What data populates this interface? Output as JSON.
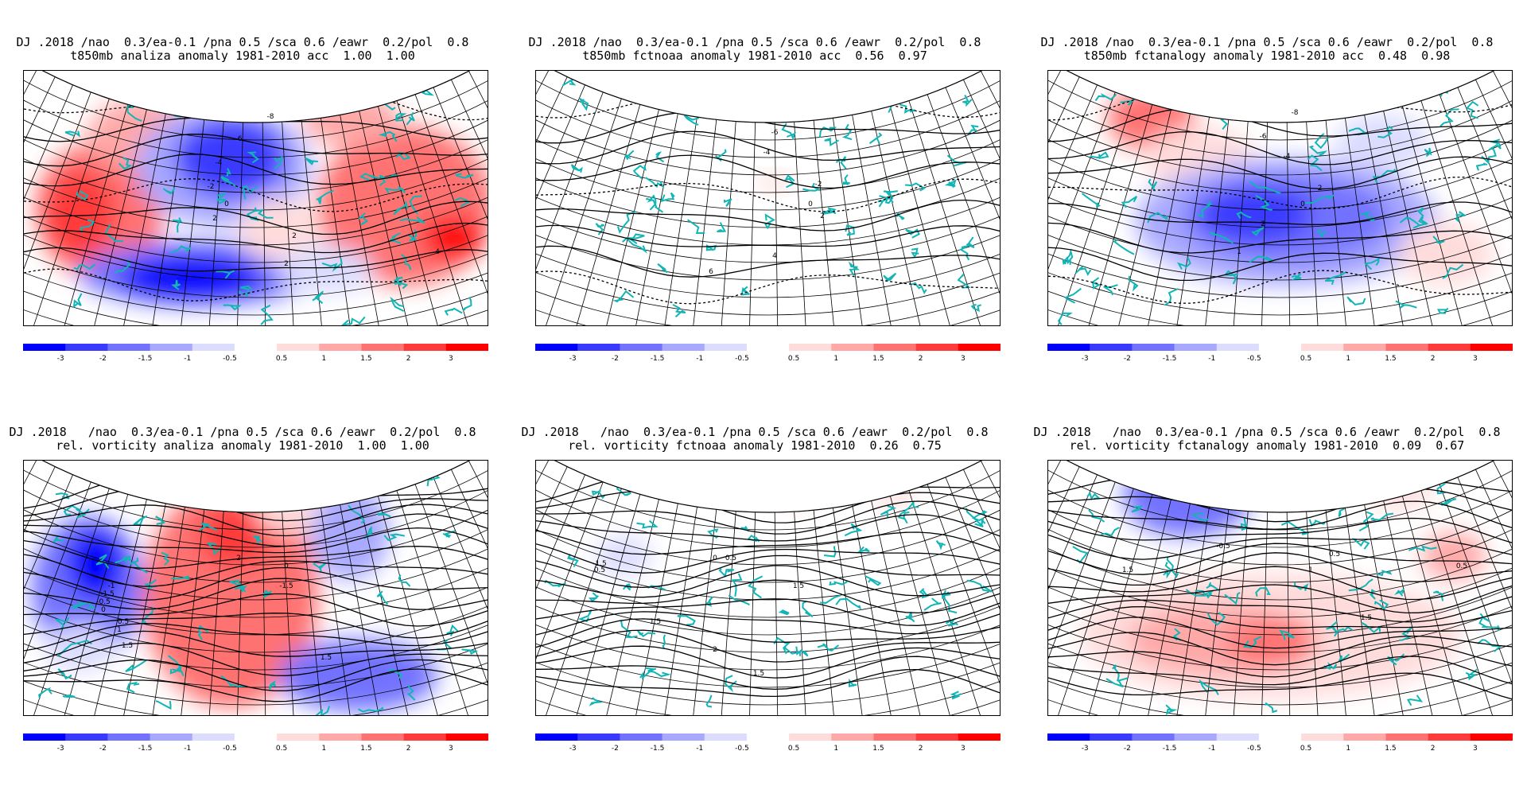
{
  "colorbar": {
    "colors": [
      "#0000ff",
      "#3a3aff",
      "#7272ff",
      "#a8a8ff",
      "#dcdcff",
      "#ffffff",
      "#ffdcdc",
      "#ffa8a8",
      "#ff7272",
      "#ff3a3a",
      "#ff0000"
    ],
    "labels": [
      "-3",
      "-2",
      "-1.5",
      "-1",
      "-0.5",
      "",
      "0.5",
      "1",
      "1.5",
      "2",
      "3"
    ]
  },
  "colors": {
    "coastline": "#11b5b5",
    "grid": "#000000",
    "contour": "#000000"
  },
  "panels": [
    {
      "id": "t850-analiza",
      "title_line1": "DJ .2018 /nao  0.3/ea-0.1 /pna 0.5 /sca 0.6 /eawr  0.2/pol  0.8",
      "title_line2": "t850mb analiza anomaly 1981-2010 acc  1.00  1.00",
      "variable": "t850mb",
      "source": "analiza",
      "acc": [
        "1.00",
        "1.00"
      ],
      "contour_labels": [
        "-8",
        "-6",
        "-4",
        "-2",
        "0",
        "2",
        "2",
        "4",
        "2"
      ]
    },
    {
      "id": "t850-fctnoaa",
      "title_line1": "DJ .2018 /nao  0.3/ea-0.1 /pna 0.5 /sca 0.6 /eawr  0.2/pol  0.8",
      "title_line2": "t850mb fctnoaa anomaly 1981-2010 acc  0.56  0.97",
      "variable": "t850mb",
      "source": "fctnoaa",
      "acc": [
        "0.56",
        "0.97"
      ],
      "contour_labels": [
        "-6",
        "-4",
        "-2",
        "0",
        "2",
        "4",
        "6"
      ]
    },
    {
      "id": "t850-fctanalogy",
      "title_line1": "DJ .2018 /nao  0.3/ea-0.1 /pna 0.5 /sca 0.6 /eawr  0.2/pol  0.8",
      "title_line2": "t850mb fctanalogy anomaly 1981-2010 acc  0.48  0.98",
      "variable": "t850mb",
      "source": "fctanalogy",
      "acc": [
        "0.48",
        "0.98"
      ],
      "contour_labels": [
        "-8",
        "-6",
        "-4",
        "-2",
        "0",
        "2",
        "1"
      ]
    },
    {
      "id": "vort-analiza",
      "title_line1": "DJ .2018   /nao  0.3/ea-0.1 /pna 0.5 /sca 0.6 /eawr  0.2/pol  0.8",
      "title_line2": "rel. vorticity analiza anomaly 1981-2010  1.00  1.00",
      "variable": "rel. vorticity",
      "source": "analiza",
      "acc": [
        "1.00",
        "1.00"
      ],
      "contour_labels": [
        "0",
        "-1",
        "-1.5",
        "-0.5",
        "0.5",
        "1",
        "1.5",
        "2",
        "-1.5",
        "0",
        "1.5"
      ]
    },
    {
      "id": "vort-fctnoaa",
      "title_line1": "DJ .2018   /nao  0.3/ea-0.1 /pna 0.5 /sca 0.6 /eawr  0.2/pol  0.8",
      "title_line2": "rel. vorticity fctnoaa anomaly 1981-2010  0.26  0.75",
      "variable": "rel. vorticity",
      "source": "fctnoaa",
      "acc": [
        "0.26",
        "0.75"
      ],
      "contour_labels": [
        "-1.5",
        "0.5",
        "0",
        "0.5",
        "1.5",
        "1.5",
        "2",
        "1.5"
      ]
    },
    {
      "id": "vort-fctanalogy",
      "title_line1": "DJ .2018   /nao  0.3/ea-0.1 /pna 0.5 /sca 0.6 /eawr  0.2/pol  0.8",
      "title_line2": "rel. vorticity fctanalogy anomaly 1981-2010  0.09  0.67",
      "variable": "rel. vorticity",
      "source": "fctanalogy",
      "acc": [
        "0.09",
        "0.67"
      ],
      "contour_labels": [
        "0.5",
        "-0.5",
        "1.5",
        "0.5",
        "1",
        "1.5"
      ]
    }
  ]
}
